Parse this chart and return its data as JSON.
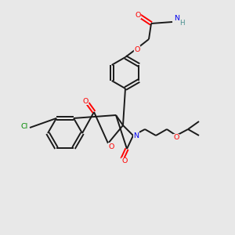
{
  "bg_color": "#e8e8e8",
  "bond_color": "#1a1a1a",
  "atom_colors": {
    "O": "#ff0000",
    "N": "#0000ee",
    "Cl": "#008800",
    "NH2_color": "#4a9090",
    "C": "#1a1a1a"
  },
  "lw": 1.4,
  "fs": 6.8
}
